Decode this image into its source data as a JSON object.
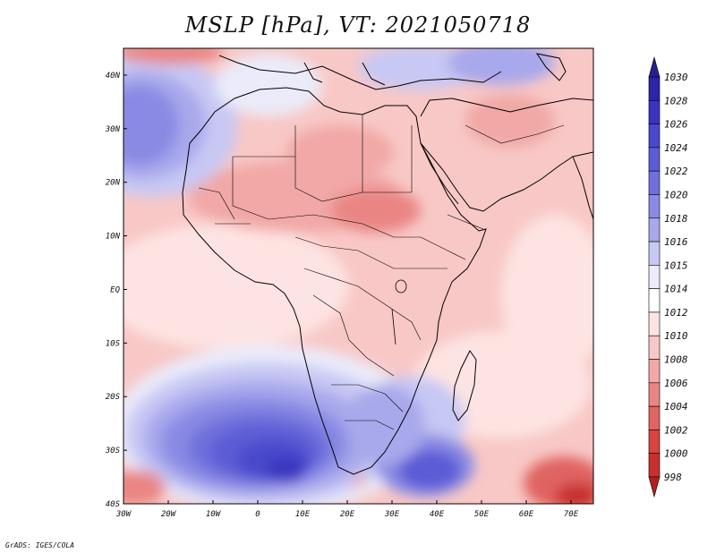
{
  "title": "MSLP [hPa], VT: 2021050718",
  "credit": "GrADS: IGES/COLA",
  "map": {
    "lat_labels": [
      "40N",
      "30N",
      "20N",
      "10N",
      "EQ",
      "10S",
      "20S",
      "30S",
      "40S"
    ],
    "lon_labels": [
      "30W",
      "20W",
      "10W",
      "0",
      "10E",
      "20E",
      "30E",
      "40E",
      "50E",
      "60E",
      "70E"
    ],
    "lon_range": [
      -30,
      75
    ],
    "lat_range": [
      -40,
      45
    ]
  },
  "colorbar": {
    "levels": [
      "1030",
      "1028",
      "1026",
      "1024",
      "1022",
      "1020",
      "1018",
      "1016",
      "1015",
      "1014",
      "1012",
      "1010",
      "1008",
      "1006",
      "1004",
      "1002",
      "1000",
      "998"
    ],
    "colors": [
      "#26208f",
      "#2a26a8",
      "#3a34c0",
      "#4a48cc",
      "#5c5cd6",
      "#7070dc",
      "#8a8ae4",
      "#a8a8ec",
      "#c8c8f4",
      "#ebebfa",
      "#ffffff",
      "#fde4e2",
      "#f8c8c6",
      "#f1a8a6",
      "#e98684",
      "#e06462",
      "#d84443",
      "#c8302f",
      "#b02020"
    ]
  }
}
